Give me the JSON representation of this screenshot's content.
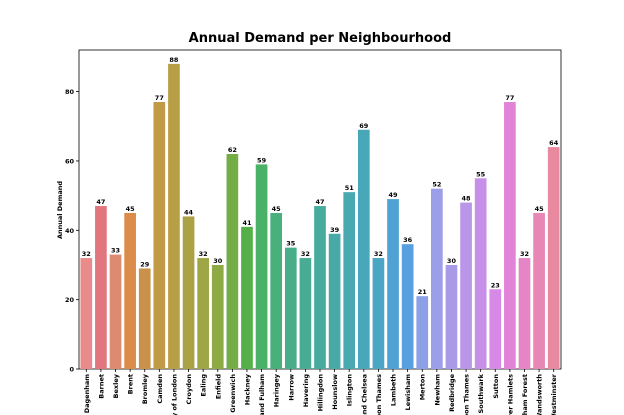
{
  "chart_data": {
    "type": "bar",
    "title": "Annual Demand per Neighbourhood",
    "title_color": "#ff0000",
    "y_label": "Annual Demand",
    "categories": [
      "d Dagenham",
      "Barnet",
      "Bexley",
      "Brent",
      "Bromley",
      "Camden",
      "ty of London",
      "Croydon",
      "Ealing",
      "Enfield",
      "Greenwich",
      "Hackney",
      "and Fulham",
      "Haringey",
      "Harrow",
      "Havering",
      "Hillingdon",
      "Hounslow",
      "Islington",
      "and Chelsea",
      "pon Thames",
      "Lambeth",
      "Lewisham",
      "Merton",
      "Newham",
      "Redbridge",
      "pon Thames",
      "Southwark",
      "Sutton",
      "wer Hamlets",
      "ltham Forest",
      "Wandsworth",
      "Westminster"
    ],
    "values": [
      32,
      47,
      33,
      45,
      29,
      77,
      88,
      44,
      32,
      30,
      62,
      41,
      59,
      45,
      35,
      32,
      47,
      39,
      51,
      69,
      32,
      49,
      36,
      21,
      52,
      30,
      48,
      55,
      23,
      77,
      32,
      45,
      64
    ],
    "colors": [
      "#e98b8b",
      "#e2767f",
      "#dc8a70",
      "#dc8c4a",
      "#c9914a",
      "#c09a44",
      "#b89e44",
      "#aaa245",
      "#9fa645",
      "#8eaa45",
      "#74ad45",
      "#56b049",
      "#4ab267",
      "#49b07c",
      "#48ae8a",
      "#48ac95",
      "#47ab9e",
      "#47aaa7",
      "#48a9b0",
      "#49a7ba",
      "#4ba5c5",
      "#4fa2d3",
      "#589fe0",
      "#8ba0e6",
      "#9b9ee8",
      "#a99ae8",
      "#b996e8",
      "#c78fe8",
      "#d68ae6",
      "#e184d8",
      "#e585c6",
      "#e886b5",
      "#e9899f"
    ],
    "ylim": [
      0,
      92
    ],
    "yticks": [
      0,
      20,
      40,
      60,
      80
    ],
    "grid": false
  }
}
